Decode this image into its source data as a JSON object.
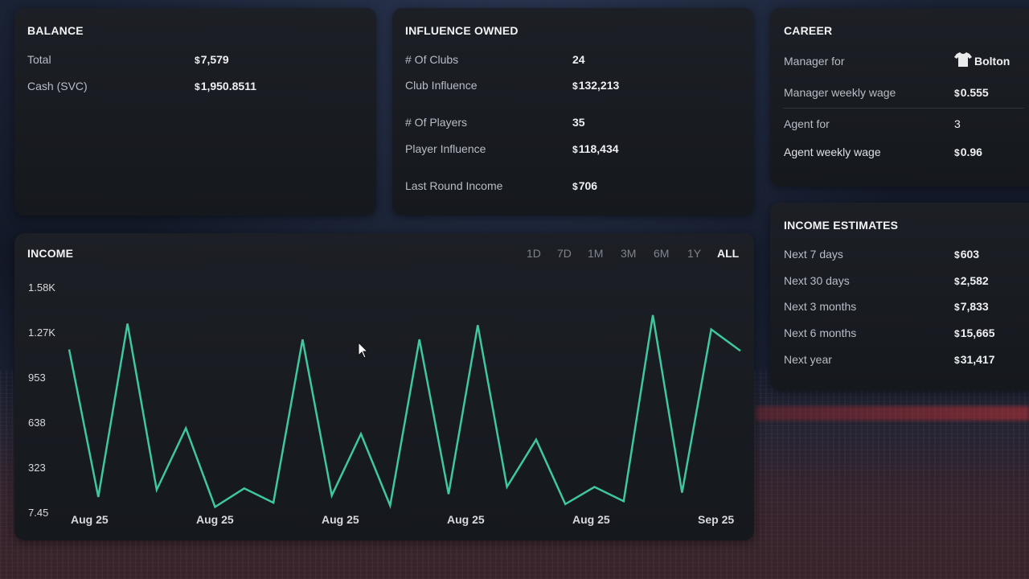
{
  "balance": {
    "title": "BALANCE",
    "rows": [
      {
        "label": "Total",
        "value": "7,579"
      },
      {
        "label": "Cash (SVC)",
        "value": "1,950.8511"
      }
    ]
  },
  "influence": {
    "title": "INFLUENCE OWNED",
    "clubs_label": "# Of Clubs",
    "clubs_value": "24",
    "club_influence_label": "Club Influence",
    "club_influence_value": "132,213",
    "players_label": "# Of Players",
    "players_value": "35",
    "player_influence_label": "Player Influence",
    "player_influence_value": "118,434",
    "last_round_label": "Last Round Income",
    "last_round_value": "706"
  },
  "career": {
    "title": "CAREER",
    "manager_for_label": "Manager for",
    "manager_for_value": "Bolton",
    "manager_wage_label": "Manager weekly wage",
    "manager_wage_value": "0.555",
    "agent_for_label": "Agent for",
    "agent_for_value": "3",
    "agent_wage_label": "Agent weekly wage",
    "agent_wage_value": "0.96"
  },
  "income_estimates": {
    "title": "INCOME ESTIMATES",
    "rows": [
      {
        "label": "Next 7 days",
        "value": "603"
      },
      {
        "label": "Next 30 days",
        "value": "2,582"
      },
      {
        "label": "Next 3 months",
        "value": "7,833"
      },
      {
        "label": "Next 6 months",
        "value": "15,665"
      },
      {
        "label": "Next year",
        "value": "31,417"
      }
    ]
  },
  "income": {
    "title": "INCOME",
    "ranges": [
      "1D",
      "7D",
      "1M",
      "3M",
      "6M",
      "1Y",
      "ALL"
    ],
    "active_range": "ALL"
  },
  "colors": {
    "line": "#3ec7a0",
    "panel": "#17191e",
    "accent_text": "#f1f2f4"
  },
  "chart_data": {
    "type": "line",
    "title": "INCOME",
    "xlabel": "",
    "ylabel": "",
    "y_ticks": [
      "7.45",
      "323",
      "638",
      "953",
      "1.27K",
      "1.58K"
    ],
    "ylim": [
      7.45,
      1580
    ],
    "x_ticks": [
      "Aug 25",
      "Aug 25",
      "Aug 25",
      "Aug 25",
      "Aug 25",
      "Sep 25"
    ],
    "series": [
      {
        "values": [
          1150,
          120,
          1330,
          170,
          600,
          50,
          180,
          80,
          1220,
          130,
          560,
          60,
          1220,
          140,
          1320,
          190,
          520,
          70,
          190,
          90,
          1390,
          150,
          1290,
          1140
        ]
      }
    ],
    "grid": false,
    "legend": "none"
  }
}
